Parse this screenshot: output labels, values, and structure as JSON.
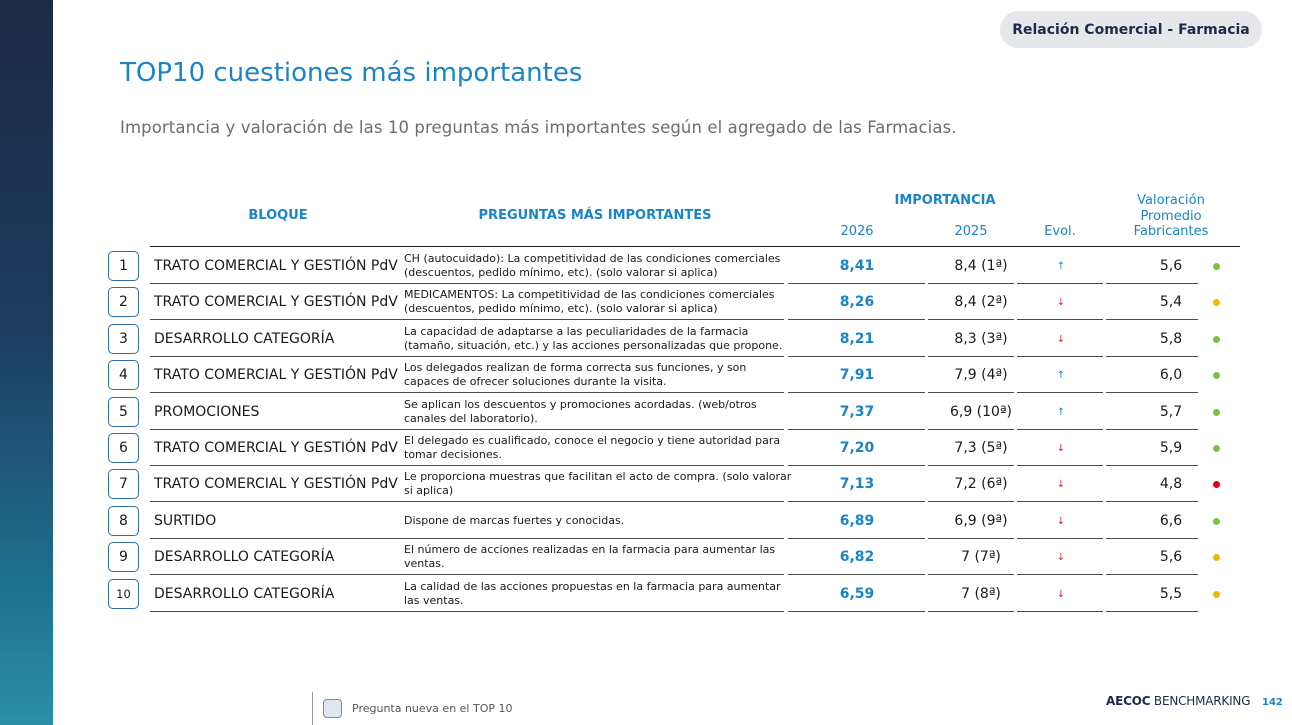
{
  "header": {
    "tag": "Relación Comercial - Farmacia",
    "title": "TOP10 cuestiones más importantes",
    "subtitle": "Importancia y valoración de las 10 preguntas más importantes según el agregado de las Farmacias."
  },
  "table": {
    "col_bloque": "BLOQUE",
    "col_preguntas": "PREGUNTAS MÁS IMPORTANTES",
    "col_importancia": "IMPORTANCIA",
    "col_2026": "2026",
    "col_2025": "2025",
    "col_evol": "Evol.",
    "col_valoracion": "Valoración Promedio Fabricantes",
    "evol_up_glyph": "↑",
    "evol_down_glyph": "↓",
    "colors": {
      "green": "#7cc242",
      "yellow": "#f5b800",
      "red": "#e2001a"
    },
    "rows": [
      {
        "n": "1",
        "bloque": "TRATO COMERCIAL Y GESTIÓN PdV",
        "pregunta": "CH (autocuidado): La competitividad de las condiciones comerciales (descuentos, pedido mínimo, etc). (solo valorar si aplica)",
        "v2026": "8,41",
        "v2025": "8,4 (1ª)",
        "evol": "up",
        "val": "5,6",
        "dot": "green"
      },
      {
        "n": "2",
        "bloque": "TRATO COMERCIAL Y GESTIÓN PdV",
        "pregunta": "MEDICAMENTOS: La competitividad de las condiciones comerciales (descuentos, pedido mínimo, etc). (solo valorar si aplica)",
        "v2026": "8,26",
        "v2025": "8,4 (2ª)",
        "evol": "down",
        "val": "5,4",
        "dot": "yellow"
      },
      {
        "n": "3",
        "bloque": "DESARROLLO CATEGORÍA",
        "pregunta": "La capacidad de adaptarse a las peculiaridades de la farmacia (tamaño, situación, etc.) y las acciones personalizadas que propone.",
        "v2026": "8,21",
        "v2025": "8,3 (3ª)",
        "evol": "down",
        "val": "5,8",
        "dot": "green"
      },
      {
        "n": "4",
        "bloque": "TRATO COMERCIAL Y GESTIÓN PdV",
        "pregunta": "Los delegados realizan de forma correcta sus funciones, y son capaces de ofrecer soluciones durante la visita.",
        "v2026": "7,91",
        "v2025": "7,9 (4ª)",
        "evol": "up",
        "val": "6,0",
        "dot": "green"
      },
      {
        "n": "5",
        "bloque": "PROMOCIONES",
        "pregunta": "Se aplican los descuentos y promociones acordadas. (web/otros canales del laboratorio).",
        "v2026": "7,37",
        "v2025": "6,9 (10ª)",
        "evol": "up",
        "val": "5,7",
        "dot": "green"
      },
      {
        "n": "6",
        "bloque": "TRATO COMERCIAL Y GESTIÓN PdV",
        "pregunta": "El delegado es cualificado, conoce el negocio y tiene autoridad para tomar decisiones.",
        "v2026": "7,20",
        "v2025": "7,3 (5ª)",
        "evol": "down",
        "val": "5,9",
        "dot": "green"
      },
      {
        "n": "7",
        "bloque": "TRATO COMERCIAL Y GESTIÓN PdV",
        "pregunta": "Le proporciona muestras que facilitan el acto de compra. (solo valorar si aplica)",
        "v2026": "7,13",
        "v2025": "7,2 (6ª)",
        "evol": "down",
        "val": "4,8",
        "dot": "red"
      },
      {
        "n": "8",
        "bloque": "SURTIDO",
        "pregunta": "Dispone de marcas fuertes y conocidas.",
        "v2026": "6,89",
        "v2025": "6,9 (9ª)",
        "evol": "down",
        "val": "6,6",
        "dot": "green"
      },
      {
        "n": "9",
        "bloque": "DESARROLLO CATEGORÍA",
        "pregunta": "El número de acciones realizadas en la farmacia para aumentar las ventas.",
        "v2026": "6,82",
        "v2025": "7 (7ª)",
        "evol": "down",
        "val": "5,6",
        "dot": "yellow"
      },
      {
        "n": "10",
        "bloque": "DESARROLLO CATEGORÍA",
        "pregunta": "La calidad de las acciones propuestas en la farmacia para aumentar las ventas.",
        "v2026": "6,59",
        "v2025": "7 (8ª)",
        "evol": "down",
        "val": "5,5",
        "dot": "yellow"
      }
    ]
  },
  "footer": {
    "legend": "Pregunta nueva en el TOP 10",
    "brand_bold": "AECOC",
    "brand_rest": " BENCHMARKING",
    "page": "142"
  }
}
